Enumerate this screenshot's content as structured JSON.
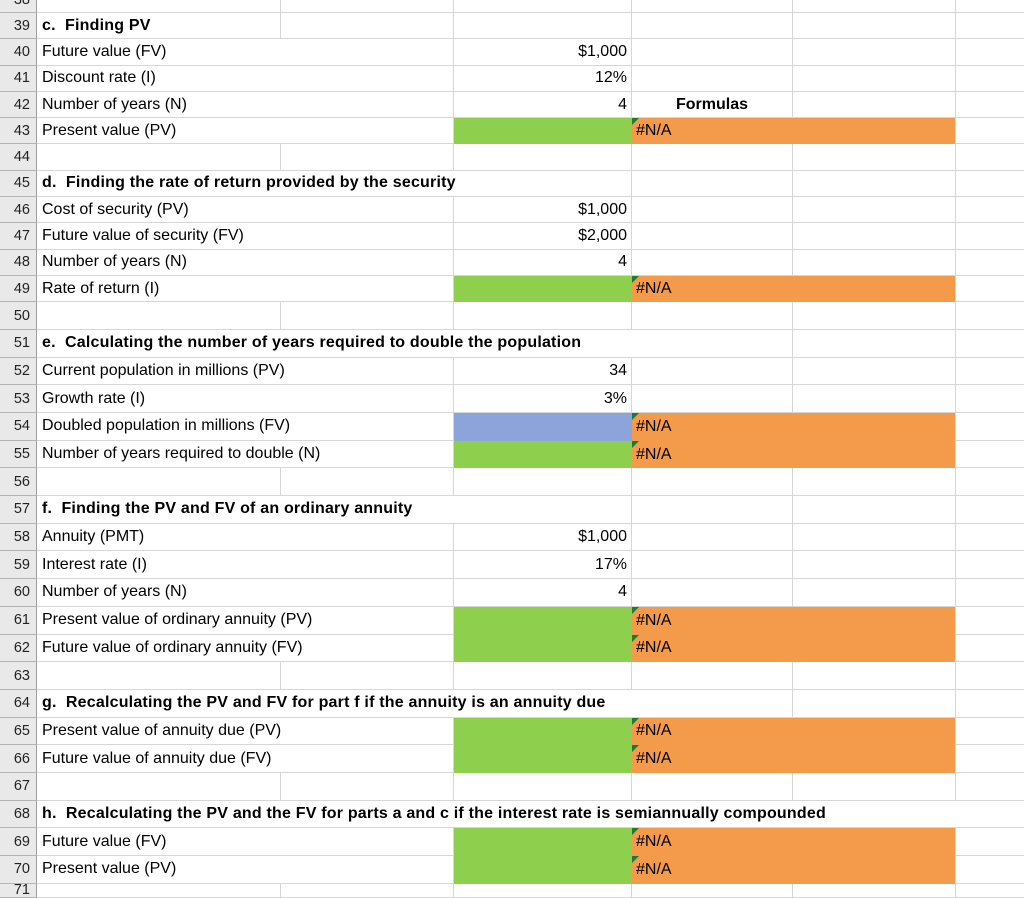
{
  "app": {
    "title": "Excel worksheet - time value of money problems"
  },
  "colors": {
    "input_cell_green": "#8ed04e",
    "formula_result_orange": "#f49a4b",
    "given_cell_blue": "#8da4da",
    "error_indicator_green": "#1e7b34",
    "gridline": "#d6d6d6",
    "row_header_background": "#e9e9e9"
  },
  "grid": {
    "formulas_header": "Formulas",
    "rows": [
      {
        "num": 38,
        "type": "empty",
        "partial": "top"
      },
      {
        "num": 39,
        "type": "section",
        "text": "c.  Finding PV",
        "span": "A"
      },
      {
        "num": 40,
        "type": "value",
        "label": "Future value (FV)",
        "value": "$1,000"
      },
      {
        "num": 41,
        "type": "value",
        "label": "Discount rate (I)",
        "value": "12%"
      },
      {
        "num": 42,
        "type": "value",
        "label": "Number of years (N)",
        "value": "4",
        "d_label": "Formulas"
      },
      {
        "num": 43,
        "type": "input",
        "label": "Present value (PV)",
        "fill": "green",
        "result": "#N/A"
      },
      {
        "num": 44,
        "type": "empty"
      },
      {
        "num": 45,
        "type": "section",
        "text": "d.  Finding the rate of return provided by the security",
        "span": "A:C"
      },
      {
        "num": 46,
        "type": "value",
        "label": "Cost of security (PV)",
        "value": "$1,000"
      },
      {
        "num": 47,
        "type": "value",
        "label": "Future value of security (FV)",
        "value": "$2,000"
      },
      {
        "num": 48,
        "type": "value",
        "label": "Number of years (N)",
        "value": "4"
      },
      {
        "num": 49,
        "type": "input",
        "label": "Rate of return (I)",
        "fill": "green",
        "result": "#N/A"
      },
      {
        "num": 50,
        "type": "empty"
      },
      {
        "num": 51,
        "type": "section",
        "text": "e.  Calculating the number of years required to double the population",
        "span": "A:D"
      },
      {
        "num": 52,
        "type": "value",
        "label": "Current population in millions (PV)",
        "value": "34"
      },
      {
        "num": 53,
        "type": "value",
        "label": "Growth rate (I)",
        "value": "3%"
      },
      {
        "num": 54,
        "type": "input",
        "label": "Doubled population in millions (FV)",
        "fill": "blue",
        "result": "#N/A"
      },
      {
        "num": 55,
        "type": "input",
        "label": "Number of years required to double (N)",
        "fill": "green",
        "result": "#N/A"
      },
      {
        "num": 56,
        "type": "empty"
      },
      {
        "num": 57,
        "type": "section",
        "text": "f.  Finding the PV and FV of an ordinary annuity",
        "span": "A:C"
      },
      {
        "num": 58,
        "type": "value",
        "label": "Annuity (PMT)",
        "value": "$1,000"
      },
      {
        "num": 59,
        "type": "value",
        "label": "Interest rate (I)",
        "value": "17%"
      },
      {
        "num": 60,
        "type": "value",
        "label": "Number of years (N)",
        "value": "4"
      },
      {
        "num": 61,
        "type": "input",
        "label": "Present value of ordinary annuity (PV)",
        "fill": "green",
        "result": "#N/A"
      },
      {
        "num": 62,
        "type": "input",
        "label": "Future value of ordinary annuity (FV)",
        "fill": "green",
        "result": "#N/A"
      },
      {
        "num": 63,
        "type": "empty"
      },
      {
        "num": 64,
        "type": "section",
        "text": "g.  Recalculating the PV and FV for part f if the annuity is an annuity due",
        "span": "A:D"
      },
      {
        "num": 65,
        "type": "input",
        "label": "Present value of annuity due (PV)",
        "fill": "green",
        "result": "#N/A"
      },
      {
        "num": 66,
        "type": "input",
        "label": "Future value of annuity due (FV)",
        "fill": "green",
        "result": "#N/A"
      },
      {
        "num": 67,
        "type": "empty"
      },
      {
        "num": 68,
        "type": "section",
        "text": "h.  Recalculating the PV and the FV for parts a and c if the interest rate is semiannually compounded",
        "span": "A:F"
      },
      {
        "num": 69,
        "type": "input",
        "label": "Future value (FV)",
        "fill": "green",
        "result": "#N/A"
      },
      {
        "num": 70,
        "type": "input",
        "label": "Present value (PV)",
        "fill": "green",
        "result": "#N/A"
      },
      {
        "num": 71,
        "type": "empty",
        "partial": "bottom"
      }
    ]
  }
}
